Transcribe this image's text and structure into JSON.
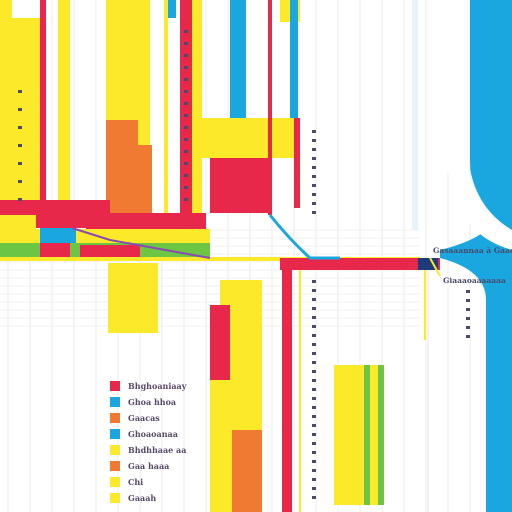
{
  "chart_data": {
    "type": "bar",
    "title": "",
    "xlabel": "",
    "ylabel": "",
    "grid": true,
    "legend_position": "bottom-left",
    "colors": {
      "red": "#e8284a",
      "blue": "#1aa7e0",
      "orange": "#f07a32",
      "yellow": "#fbe92a",
      "green": "#6cc644",
      "purple": "#8a4ab0",
      "navy": "#1d3a7a"
    },
    "legend": [
      {
        "label": "Bhghoaniaay",
        "color": "#e8284a"
      },
      {
        "label": "Ghoa hhoa",
        "color": "#1aa7e0"
      },
      {
        "label": "Gaacas",
        "color": "#f07a32"
      },
      {
        "label": "Ghoaoanaa",
        "color": "#1aa7e0"
      },
      {
        "label": "Bhdhhaae aa",
        "color": "#fbe92a"
      },
      {
        "label": "Gaa haaa",
        "color": "#f07a32"
      },
      {
        "label": "Chi",
        "color": "#fbe92a"
      },
      {
        "label": "Gaaah",
        "color": "#fbe92a"
      }
    ],
    "labels": [
      {
        "text": "Gasaaannaa à Gaaoanna",
        "orient": "h"
      },
      {
        "text": "Giaaaoaaaaaaa",
        "orient": "h"
      }
    ]
  }
}
